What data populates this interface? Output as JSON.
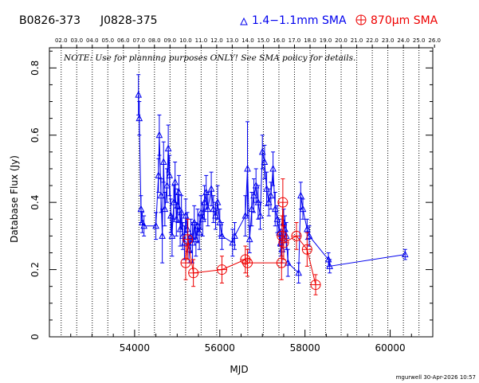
{
  "chart_data": {
    "type": "scatter",
    "header": {
      "source_b1950": "B0826-373",
      "source_j2000": "J0828-375",
      "legend_blue": "1.4−1.1mm SMA",
      "legend_red": "870μm SMA"
    },
    "note": "NOTE: Use for planning purposes ONLY! See SMA policy for details.",
    "xlabel": "MJD",
    "ylabel": "Database Flux (Jy)",
    "xlim": [
      52000,
      61000
    ],
    "ylim": [
      0,
      0.86
    ],
    "x_ticks": [
      54000,
      56000,
      58000,
      60000
    ],
    "x_tick_labels": [
      "54000",
      "56000",
      "58000",
      "60000"
    ],
    "y_ticks": [
      0,
      0.2,
      0.4,
      0.6,
      0.8
    ],
    "y_tick_labels": [
      "0",
      "0.2",
      "0.4",
      "0.6",
      "0.8"
    ],
    "top_axis_labels": [
      "02.0",
      "03.0",
      "04.0",
      "05.0",
      "06.0",
      "07.0",
      "08.0",
      "09.0",
      "10.0",
      "11.0",
      "12.0",
      "13.0",
      "14.0",
      "15.0",
      "16.0",
      "17.0",
      "18.0",
      "19.0",
      "20.0",
      "21.0",
      "22.0",
      "23.0",
      "24.0",
      "25.0",
      "26.0"
    ],
    "top_axis_mjd": [
      52276,
      52641,
      53006,
      53371,
      53736,
      54101,
      54466,
      54831,
      55197,
      55562,
      55927,
      56292,
      56658,
      57023,
      57388,
      57753,
      58119,
      58484,
      58849,
      59215,
      59580,
      59945,
      60310,
      60676,
      61041
    ],
    "footer": "mgurwell 30-Apr-2026 10:57",
    "colors": {
      "blue": "#0000ee",
      "red": "#ee0000",
      "axes": "#000000"
    },
    "series": [
      {
        "name": "1.4−1.1mm SMA",
        "color": "#0000ee",
        "marker": "triangle",
        "points": [
          [
            54090,
            0.72,
            0.06
          ],
          [
            54110,
            0.65,
            0.05
          ],
          [
            54150,
            0.38,
            0.04
          ],
          [
            54180,
            0.34,
            0.03
          ],
          [
            54220,
            0.33,
            0.03
          ],
          [
            54500,
            0.33,
            0.04
          ],
          [
            54560,
            0.48,
            0.05
          ],
          [
            54580,
            0.6,
            0.06
          ],
          [
            54620,
            0.42,
            0.05
          ],
          [
            54650,
            0.3,
            0.08
          ],
          [
            54680,
            0.52,
            0.06
          ],
          [
            54710,
            0.38,
            0.05
          ],
          [
            54760,
            0.45,
            0.05
          ],
          [
            54790,
            0.56,
            0.07
          ],
          [
            54820,
            0.48,
            0.06
          ],
          [
            54850,
            0.36,
            0.05
          ],
          [
            54880,
            0.3,
            0.06
          ],
          [
            54920,
            0.4,
            0.05
          ],
          [
            54950,
            0.46,
            0.06
          ],
          [
            54980,
            0.35,
            0.05
          ],
          [
            55010,
            0.39,
            0.05
          ],
          [
            55040,
            0.43,
            0.05
          ],
          [
            55070,
            0.32,
            0.05
          ],
          [
            55100,
            0.37,
            0.05
          ],
          [
            55130,
            0.3,
            0.04
          ],
          [
            55170,
            0.28,
            0.05
          ],
          [
            55200,
            0.36,
            0.05
          ],
          [
            55240,
            0.32,
            0.05
          ],
          [
            55280,
            0.26,
            0.04
          ],
          [
            55320,
            0.3,
            0.05
          ],
          [
            55360,
            0.28,
            0.06
          ],
          [
            55400,
            0.34,
            0.05
          ],
          [
            55440,
            0.29,
            0.05
          ],
          [
            55480,
            0.33,
            0.05
          ],
          [
            55520,
            0.31,
            0.05
          ],
          [
            55560,
            0.37,
            0.05
          ],
          [
            55600,
            0.35,
            0.05
          ],
          [
            55640,
            0.4,
            0.05
          ],
          [
            55680,
            0.43,
            0.05
          ],
          [
            55720,
            0.38,
            0.05
          ],
          [
            55800,
            0.44,
            0.05
          ],
          [
            55850,
            0.38,
            0.04
          ],
          [
            55900,
            0.36,
            0.04
          ],
          [
            55950,
            0.4,
            0.05
          ],
          [
            56000,
            0.34,
            0.04
          ],
          [
            56050,
            0.3,
            0.04
          ],
          [
            56300,
            0.28,
            0.04
          ],
          [
            56350,
            0.3,
            0.04
          ],
          [
            56600,
            0.36,
            0.06
          ],
          [
            56650,
            0.5,
            0.14
          ],
          [
            56700,
            0.29,
            0.04
          ],
          [
            56750,
            0.38,
            0.05
          ],
          [
            56800,
            0.42,
            0.05
          ],
          [
            56850,
            0.45,
            0.05
          ],
          [
            56900,
            0.4,
            0.05
          ],
          [
            56950,
            0.36,
            0.04
          ],
          [
            57000,
            0.55,
            0.05
          ],
          [
            57050,
            0.52,
            0.05
          ],
          [
            57100,
            0.44,
            0.05
          ],
          [
            57150,
            0.4,
            0.04
          ],
          [
            57200,
            0.42,
            0.04
          ],
          [
            57250,
            0.5,
            0.05
          ],
          [
            57300,
            0.38,
            0.05
          ],
          [
            57350,
            0.35,
            0.04
          ],
          [
            57400,
            0.31,
            0.04
          ],
          [
            57430,
            0.28,
            0.04
          ],
          [
            57460,
            0.26,
            0.04
          ],
          [
            57500,
            0.34,
            0.04
          ],
          [
            57530,
            0.32,
            0.04
          ],
          [
            57560,
            0.3,
            0.04
          ],
          [
            57600,
            0.22,
            0.04
          ],
          [
            57850,
            0.19,
            0.03
          ],
          [
            57900,
            0.42,
            0.04
          ],
          [
            57950,
            0.38,
            0.03
          ],
          [
            58050,
            0.32,
            0.03
          ],
          [
            58100,
            0.3,
            0.03
          ],
          [
            58550,
            0.23,
            0.02
          ],
          [
            58580,
            0.21,
            0.02
          ],
          [
            60350,
            0.245,
            0.015
          ]
        ]
      },
      {
        "name": "870μm SMA",
        "color": "#ee0000",
        "marker": "circle-plus",
        "points": [
          [
            55200,
            0.22,
            0.05
          ],
          [
            55250,
            0.29,
            0.06
          ],
          [
            55380,
            0.19,
            0.04
          ],
          [
            56050,
            0.2,
            0.04
          ],
          [
            56600,
            0.23,
            0.04
          ],
          [
            56650,
            0.22,
            0.04
          ],
          [
            57450,
            0.22,
            0.05
          ],
          [
            57460,
            0.3,
            0.06
          ],
          [
            57480,
            0.4,
            0.07
          ],
          [
            57500,
            0.28,
            0.05
          ],
          [
            57800,
            0.3,
            0.04
          ],
          [
            58050,
            0.26,
            0.05
          ],
          [
            58250,
            0.155,
            0.03
          ]
        ]
      }
    ]
  }
}
